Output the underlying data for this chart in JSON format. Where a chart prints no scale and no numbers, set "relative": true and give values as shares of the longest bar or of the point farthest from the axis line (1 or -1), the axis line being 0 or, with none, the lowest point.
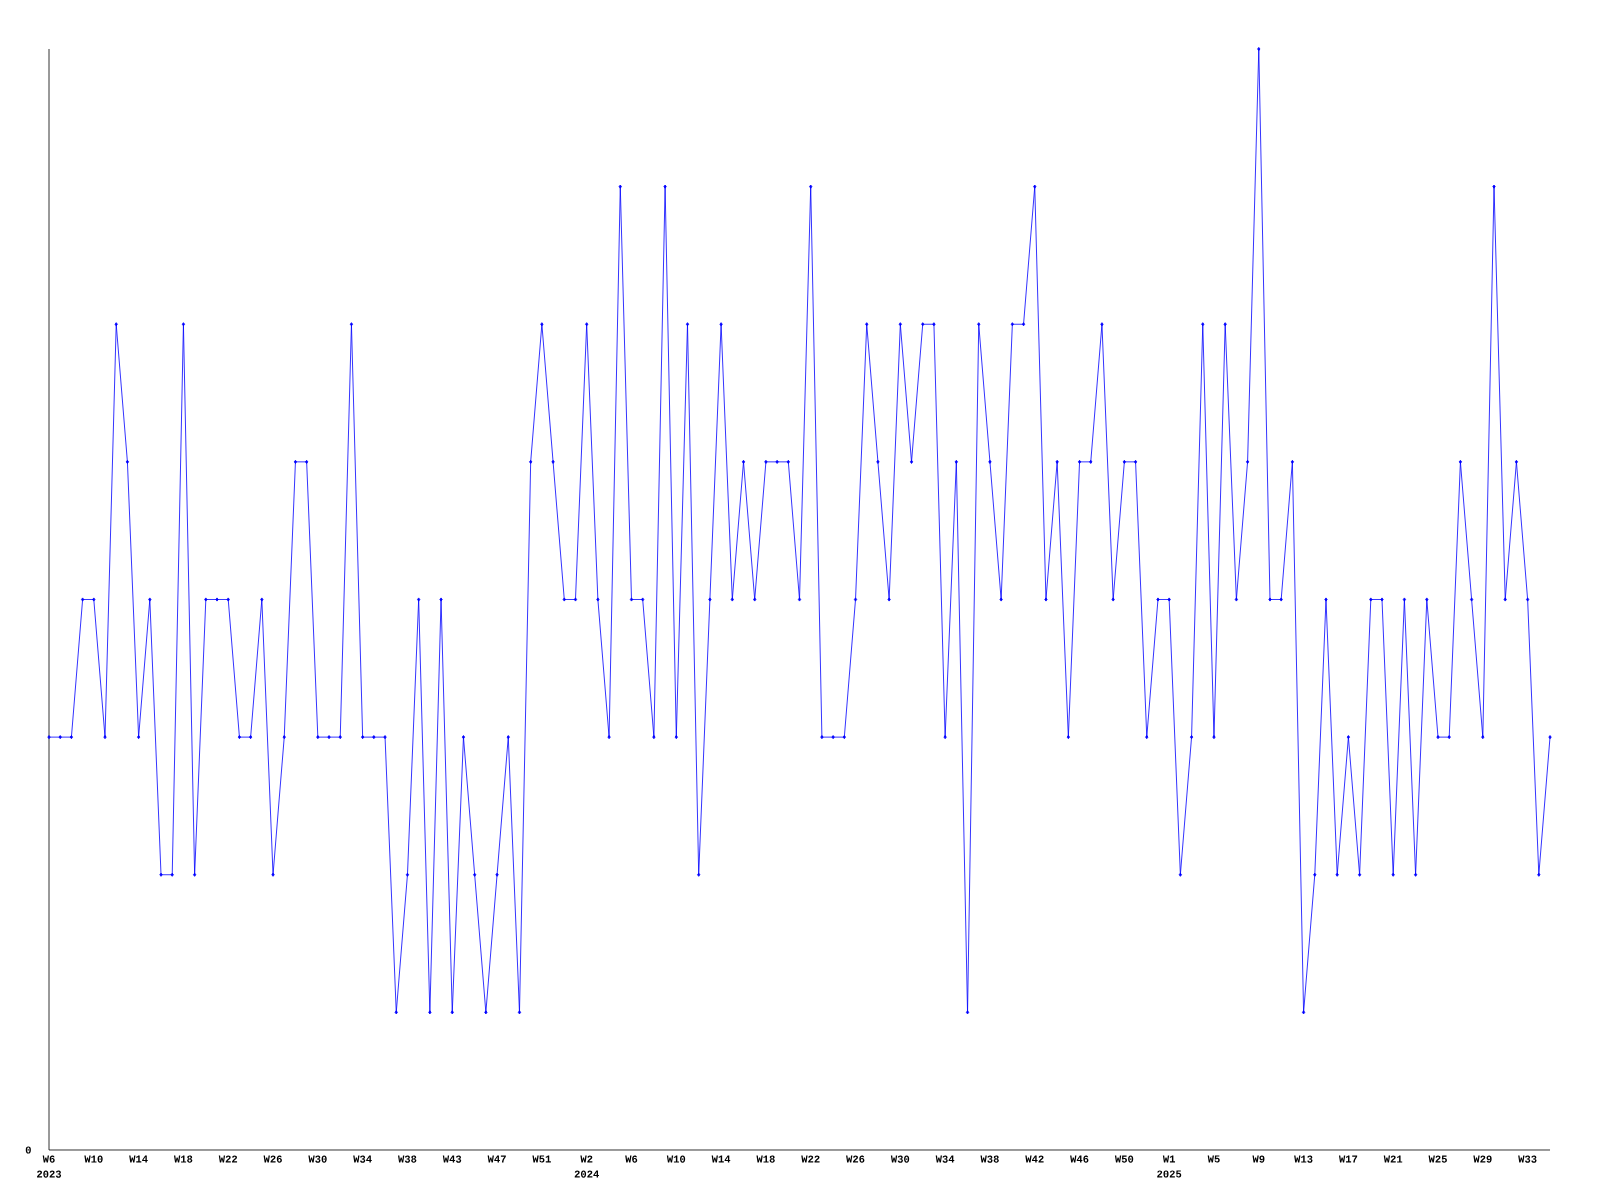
{
  "chart_data": {
    "type": "line",
    "relative": true,
    "color": "#0000ff",
    "marker": "diamond",
    "line_style": "solid",
    "categories": [
      "W6 2023",
      null,
      null,
      null,
      "W10",
      null,
      null,
      null,
      "W14",
      null,
      null,
      null,
      "W18",
      null,
      null,
      null,
      "W22",
      null,
      null,
      null,
      "W26",
      null,
      null,
      null,
      "W30",
      null,
      null,
      null,
      "W34",
      null,
      null,
      null,
      "W38",
      null,
      null,
      null,
      "W43",
      null,
      null,
      null,
      "W47",
      null,
      null,
      null,
      "W51",
      null,
      null,
      null,
      "W2 2024",
      null,
      null,
      null,
      "W6",
      null,
      null,
      null,
      "W10",
      null,
      null,
      null,
      "W14",
      null,
      null,
      null,
      "W18",
      null,
      null,
      null,
      "W22",
      null,
      null,
      null,
      "W26",
      null,
      null,
      null,
      "W30",
      null,
      null,
      null,
      "W34",
      null,
      null,
      null,
      "W38",
      null,
      null,
      null,
      "W42",
      null,
      null,
      null,
      "W46",
      null,
      null,
      null,
      "W50",
      null,
      null,
      null,
      "W1 2025",
      null,
      null,
      null,
      "W5",
      null,
      null,
      null,
      "W9",
      null,
      null,
      null,
      "W13",
      null,
      null,
      null,
      "W17",
      null,
      null,
      null,
      "W21",
      null,
      null,
      null,
      "W25",
      null,
      null,
      null,
      "W29",
      null,
      null,
      null,
      "W33",
      null,
      null
    ],
    "values": [
      0.375,
      0.375,
      0.375,
      0.5,
      0.5,
      0.375,
      0.75,
      0.625,
      0.375,
      0.5,
      0.25,
      0.25,
      0.75,
      0.25,
      0.5,
      0.5,
      0.5,
      0.375,
      0.375,
      0.5,
      0.25,
      0.375,
      0.625,
      0.625,
      0.375,
      0.375,
      0.375,
      0.75,
      0.375,
      0.375,
      0.375,
      0.125,
      0.25,
      0.5,
      0.125,
      0.5,
      0.125,
      0.375,
      0.25,
      0.125,
      0.25,
      0.375,
      0.125,
      0.625,
      0.75,
      0.625,
      0.5,
      0.5,
      0.75,
      0.5,
      0.375,
      0.875,
      0.5,
      0.5,
      0.375,
      0.875,
      0.375,
      0.75,
      0.25,
      0.5,
      0.75,
      0.5,
      0.625,
      0.5,
      0.625,
      0.625,
      0.625,
      0.5,
      0.875,
      0.375,
      0.375,
      0.375,
      0.5,
      0.75,
      0.625,
      0.5,
      0.75,
      0.625,
      0.75,
      0.75,
      0.375,
      0.625,
      0.125,
      0.75,
      0.625,
      0.5,
      0.75,
      0.75,
      0.875,
      0.5,
      0.625,
      0.375,
      0.625,
      0.625,
      0.75,
      0.5,
      0.625,
      0.625,
      0.375,
      0.5,
      0.5,
      0.25,
      0.375,
      0.75,
      0.375,
      0.75,
      0.5,
      0.625,
      1,
      0.5,
      0.5,
      0.625,
      0.125,
      0.25,
      0.5,
      0.25,
      0.375,
      0.25,
      0.5,
      0.5,
      0.25,
      0.5,
      0.25,
      0.5,
      0.375,
      0.375,
      0.625,
      0.5,
      0.375,
      0.875,
      0.5,
      0.625,
      0.5,
      0.25,
      0.375
    ],
    "annotations": [
      "0"
    ]
  }
}
